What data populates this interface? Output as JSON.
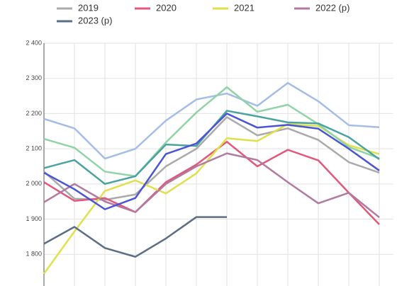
{
  "chart_data": {
    "type": "line",
    "categories": [
      null,
      null,
      null,
      null,
      null,
      null,
      null,
      null,
      null,
      null,
      null,
      null
    ],
    "ylim": [
      1710,
      2400
    ],
    "yticks": [
      {
        "value": 1800,
        "label": "1 800"
      },
      {
        "value": 1900,
        "label": "1 900"
      },
      {
        "value": 2000,
        "label": "2 000"
      },
      {
        "value": 2100,
        "label": "2 100"
      },
      {
        "value": 2200,
        "label": "2 200"
      },
      {
        "value": 2300,
        "label": "2 300"
      },
      {
        "value": 2400,
        "label": "2 400"
      }
    ],
    "grid": true,
    "series": [
      {
        "name": "2019",
        "color": "#aaaaaa",
        "values": [
          2035,
          1958,
          1955,
          1970,
          2050,
          2100,
          2190,
          2138,
          2158,
          2125,
          2062,
          2032
        ]
      },
      {
        "name": "2020",
        "color": "#e0587a",
        "values": [
          2005,
          1952,
          1960,
          1920,
          2005,
          2055,
          2120,
          2050,
          2097,
          2067,
          1975,
          1885
        ]
      },
      {
        "name": "2021",
        "color": "#dfe04a",
        "values": [
          1745,
          1865,
          1980,
          2010,
          1973,
          2030,
          2130,
          2122,
          2170,
          2165,
          2110,
          2085
        ]
      },
      {
        "name": "2022 (p)",
        "color": "#b07aa1",
        "values": [
          1948,
          2000,
          1950,
          1920,
          2000,
          2050,
          2087,
          2068,
          2005,
          1945,
          1975,
          1905
        ]
      },
      {
        "name": "2023 (p)",
        "color": "#5b6e85",
        "values": [
          1830,
          1878,
          1818,
          1793,
          1845,
          1906,
          1906,
          null,
          null,
          null,
          null,
          null
        ]
      },
      {
        "color": "#a4bde6",
        "values": [
          2185,
          2158,
          2072,
          2100,
          2180,
          2240,
          2257,
          2222,
          2287,
          2235,
          2167,
          2161
        ]
      },
      {
        "color": "#8fd3a6",
        "values": [
          2128,
          2103,
          2035,
          2022,
          2118,
          2203,
          2275,
          2205,
          2225,
          2170,
          2105,
          2073
        ]
      },
      {
        "color": "#4aa3a0",
        "values": [
          2045,
          2068,
          2000,
          2022,
          2112,
          2108,
          2208,
          2192,
          2175,
          2172,
          2133,
          2070
        ]
      },
      {
        "color": "#4b55d4",
        "values": [
          2032,
          1985,
          1928,
          1960,
          2085,
          2115,
          2200,
          2160,
          2168,
          2157,
          2100,
          2038
        ]
      }
    ]
  }
}
